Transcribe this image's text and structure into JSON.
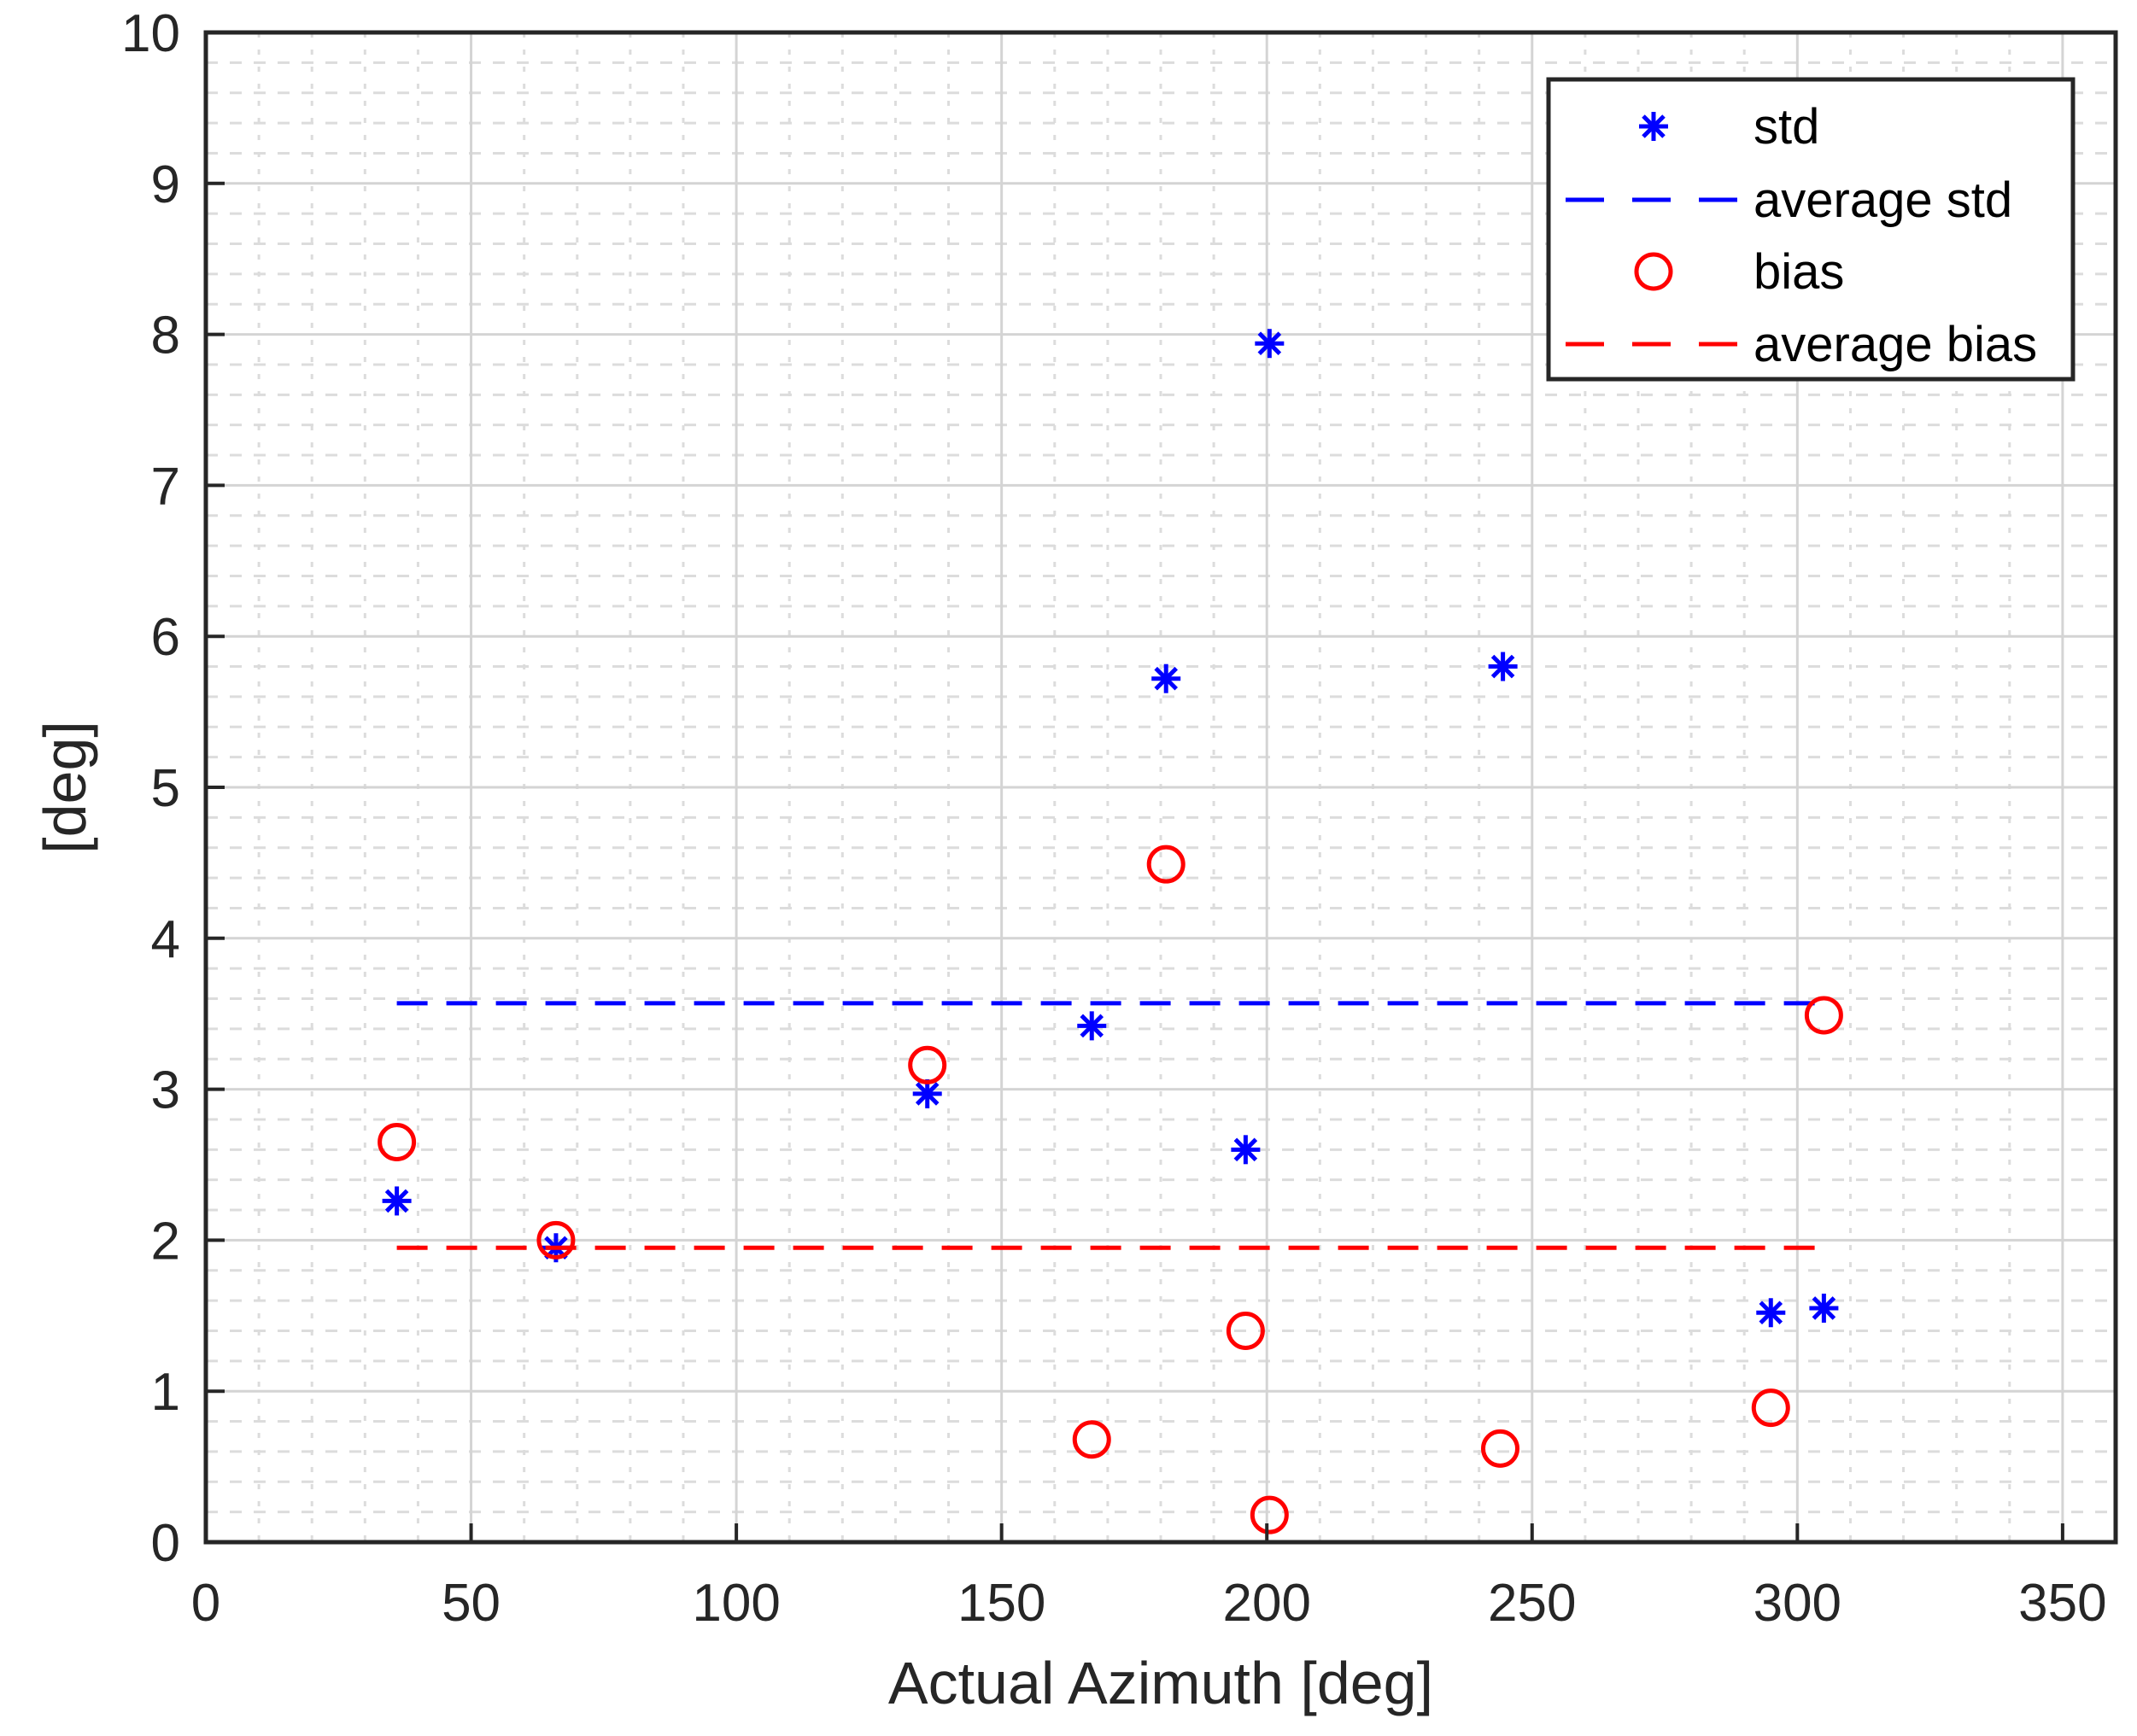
{
  "chart_data": {
    "type": "scatter",
    "title": "",
    "xlabel": "Actual Azimuth [deg]",
    "ylabel": "[deg]",
    "xlim": [
      0,
      360
    ],
    "ylim": [
      0,
      10
    ],
    "xticks": [
      "0",
      "50",
      "100",
      "150",
      "200",
      "250",
      "300",
      "350"
    ],
    "yticks": [
      "0",
      "1",
      "2",
      "3",
      "4",
      "5",
      "6",
      "7",
      "8",
      "9",
      "10"
    ],
    "grid": "major and minor",
    "legend_position": "top-right",
    "colors": {
      "std": "#0000ff",
      "bias": "#ff0000"
    },
    "series": [
      {
        "name": "std",
        "marker": "asterisk",
        "color": "#0000ff",
        "x": [
          36,
          66,
          136,
          167,
          181,
          196,
          200.5,
          244.5,
          295,
          305
        ],
        "y": [
          2.26,
          1.95,
          2.97,
          3.42,
          5.72,
          2.6,
          7.94,
          5.8,
          1.52,
          1.55
        ]
      },
      {
        "name": "average std",
        "line": "dashed",
        "color": "#0000ff",
        "x": [
          36,
          305
        ],
        "y": [
          3.57,
          3.57
        ]
      },
      {
        "name": "bias",
        "marker": "circle",
        "color": "#ff0000",
        "x": [
          36,
          66,
          136,
          167,
          181,
          196,
          200.5,
          244,
          295,
          305
        ],
        "y": [
          2.65,
          2.0,
          3.16,
          0.68,
          4.49,
          1.4,
          0.18,
          0.62,
          0.89,
          3.49
        ]
      },
      {
        "name": "average bias",
        "line": "dashed",
        "color": "#ff0000",
        "x": [
          36,
          305
        ],
        "y": [
          1.95,
          1.95
        ]
      }
    ]
  }
}
